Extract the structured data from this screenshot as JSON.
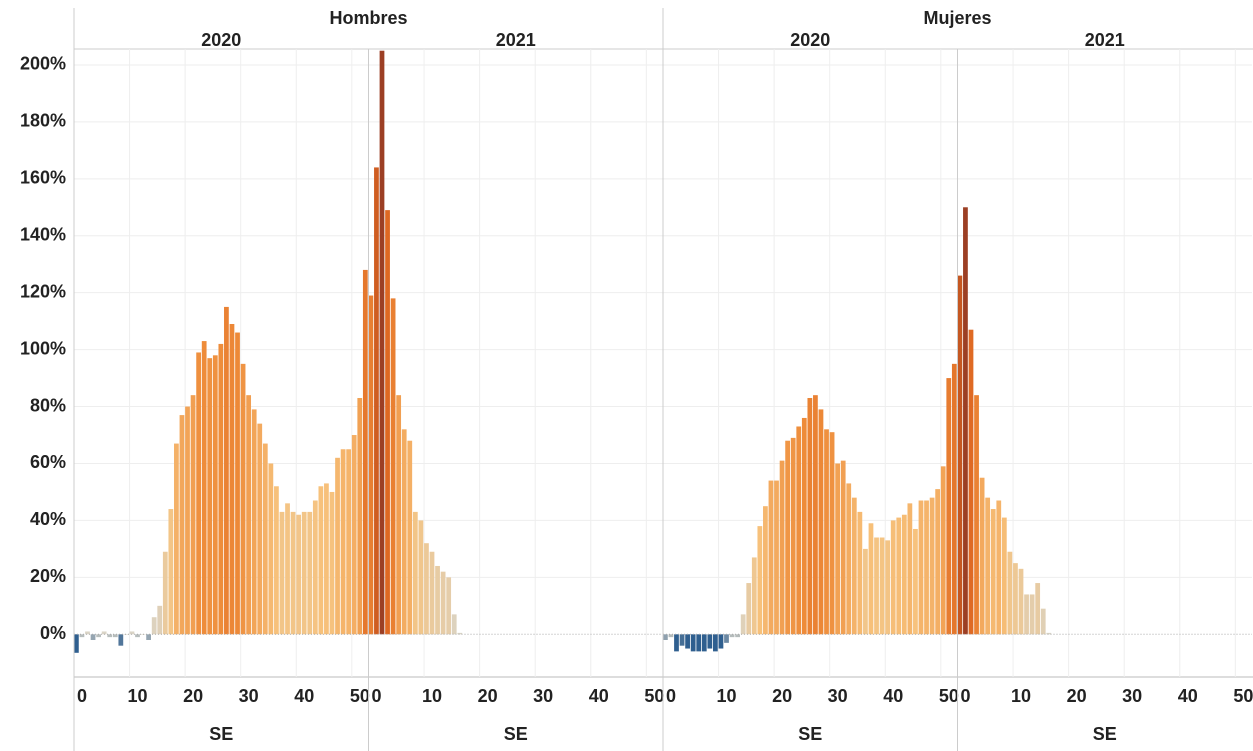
{
  "chart_data": [
    {
      "type": "bar",
      "title": "Hombres",
      "x_label": "SE",
      "ylim": [
        -15,
        205.6
      ],
      "yticks": [
        {
          "value": 0,
          "label": "0%"
        },
        {
          "value": 20,
          "label": "20%"
        },
        {
          "value": 40,
          "label": "40%"
        },
        {
          "value": 60,
          "label": "60%"
        },
        {
          "value": 80,
          "label": "80%"
        },
        {
          "value": 100,
          "label": "100%"
        },
        {
          "value": 120,
          "label": "120%"
        },
        {
          "value": 140,
          "label": "140%"
        },
        {
          "value": 160,
          "label": "160%"
        },
        {
          "value": 180,
          "label": "180%"
        },
        {
          "value": 200,
          "label": "200%"
        }
      ],
      "xlim": [
        0,
        53
      ],
      "xticks": [
        0,
        10,
        20,
        30,
        40,
        50
      ],
      "grid": true,
      "negative_color": "#2f5f8f",
      "neutral_color": "#d9d4c7",
      "positive_colors": [
        "#f7c27c",
        "#ee8c3a",
        "#dc6420",
        "#9c3f24"
      ],
      "panels": [
        {
          "year": "2020",
          "x": [
            1,
            2,
            3,
            4,
            5,
            6,
            7,
            8,
            9,
            10,
            11,
            12,
            13,
            14,
            15,
            16,
            17,
            18,
            19,
            20,
            21,
            22,
            23,
            24,
            25,
            26,
            27,
            28,
            29,
            30,
            31,
            32,
            33,
            34,
            35,
            36,
            37,
            38,
            39,
            40,
            41,
            42,
            43,
            44,
            45,
            46,
            47,
            48,
            49,
            50,
            51,
            52,
            53
          ],
          "values": [
            -6.5,
            -1,
            1,
            -2,
            -1,
            1,
            -1,
            -1,
            -4,
            0,
            1,
            -1,
            0,
            -2,
            6,
            10,
            29,
            44,
            67,
            77,
            80,
            84,
            99,
            103,
            97,
            98,
            102,
            115,
            109,
            106,
            95,
            84,
            79,
            74,
            67,
            60,
            52,
            43,
            46,
            43,
            42,
            43,
            43,
            47,
            52,
            53,
            50,
            62,
            65,
            65,
            70,
            83,
            128
          ]
        },
        {
          "year": "2021",
          "x": [
            1,
            2,
            3,
            4,
            5,
            6,
            7,
            8,
            9,
            10,
            11,
            12,
            13,
            14,
            15,
            16,
            17
          ],
          "values": [
            119,
            164,
            205,
            149,
            118,
            84,
            72,
            68,
            43,
            40,
            32,
            29,
            24,
            22,
            20,
            7,
            0.5
          ]
        }
      ]
    },
    {
      "type": "bar",
      "title": "Mujeres",
      "x_label": "SE",
      "ylim": [
        -15,
        205.6
      ],
      "yticks": [
        {
          "value": 0,
          "label": "0%"
        },
        {
          "value": 20,
          "label": "20%"
        },
        {
          "value": 40,
          "label": "40%"
        },
        {
          "value": 60,
          "label": "60%"
        },
        {
          "value": 80,
          "label": "80%"
        },
        {
          "value": 100,
          "label": "100%"
        },
        {
          "value": 120,
          "label": "120%"
        },
        {
          "value": 140,
          "label": "140%"
        },
        {
          "value": 160,
          "label": "160%"
        },
        {
          "value": 180,
          "label": "180%"
        },
        {
          "value": 200,
          "label": "200%"
        }
      ],
      "xlim": [
        0,
        53
      ],
      "xticks": [
        0,
        10,
        20,
        30,
        40,
        50
      ],
      "grid": true,
      "negative_color": "#2f5f8f",
      "neutral_color": "#d9d4c7",
      "positive_colors": [
        "#f7c27c",
        "#ee8c3a",
        "#dc6420",
        "#9c3f24"
      ],
      "panels": [
        {
          "year": "2020",
          "x": [
            1,
            2,
            3,
            4,
            5,
            6,
            7,
            8,
            9,
            10,
            11,
            12,
            13,
            14,
            15,
            16,
            17,
            18,
            19,
            20,
            21,
            22,
            23,
            24,
            25,
            26,
            27,
            28,
            29,
            30,
            31,
            32,
            33,
            34,
            35,
            36,
            37,
            38,
            39,
            40,
            41,
            42,
            43,
            44,
            45,
            46,
            47,
            48,
            49,
            50,
            51,
            52,
            53
          ],
          "values": [
            -2,
            -1,
            -6,
            -4,
            -5,
            -6,
            -6,
            -6,
            -5,
            -6,
            -5,
            -3,
            -1,
            -1,
            7,
            18,
            27,
            38,
            45,
            54,
            54,
            61,
            68,
            69,
            73,
            76,
            83,
            84,
            79,
            72,
            71,
            60,
            61,
            53,
            48,
            43,
            30,
            39,
            34,
            34,
            33,
            40,
            41,
            42,
            46,
            37,
            47,
            47,
            48,
            51,
            59,
            90,
            95
          ]
        },
        {
          "year": "2021",
          "x": [
            1,
            2,
            3,
            4,
            5,
            6,
            7,
            8,
            9,
            10,
            11,
            12,
            13,
            14,
            15,
            16,
            17
          ],
          "values": [
            126,
            150,
            107,
            84,
            55,
            48,
            44,
            47,
            41,
            29,
            25,
            23,
            14,
            14,
            18,
            9,
            0.5
          ]
        }
      ]
    }
  ]
}
